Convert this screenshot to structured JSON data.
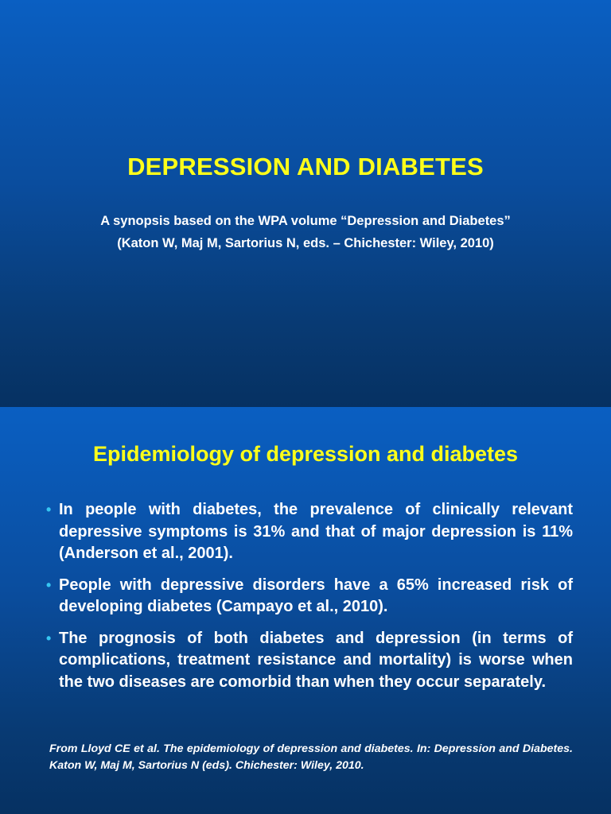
{
  "slide1": {
    "title": "DEPRESSION AND DIABETES",
    "subtitle_lines": [
      "A synopsis based on the WPA volume “Depression and Diabetes”",
      "(Katon W, Maj M, Sartorius N, eds. – Chichester: Wiley, 2010)"
    ]
  },
  "slide2": {
    "title": "Epidemiology of depression and diabetes",
    "bullet_marker": "•",
    "bullets": [
      "In people with diabetes, the prevalence of clinically relevant depressive symptoms is 31% and that of major depression is 11% (Anderson et al., 2001).",
      "People with depressive disorders have a 65% increased risk of developing diabetes (Campayo et al., 2010).",
      "The prognosis of both diabetes and depression (in terms of complications, treatment resistance and mortality) is worse when the two diseases are comorbid than when they occur separately."
    ],
    "citation": "From Lloyd CE et al. The epidemiology of depression and diabetes. In: Depression and Diabetes. Katon W, Maj M, Sartorius N (eds). Chichester: Wiley, 2010."
  },
  "colors": {
    "title": "#ffff1a",
    "body_text": "#ffffff",
    "bullet_marker": "#36c6f2",
    "background_top": "#0a5fc2",
    "background_bottom": "#063162"
  }
}
